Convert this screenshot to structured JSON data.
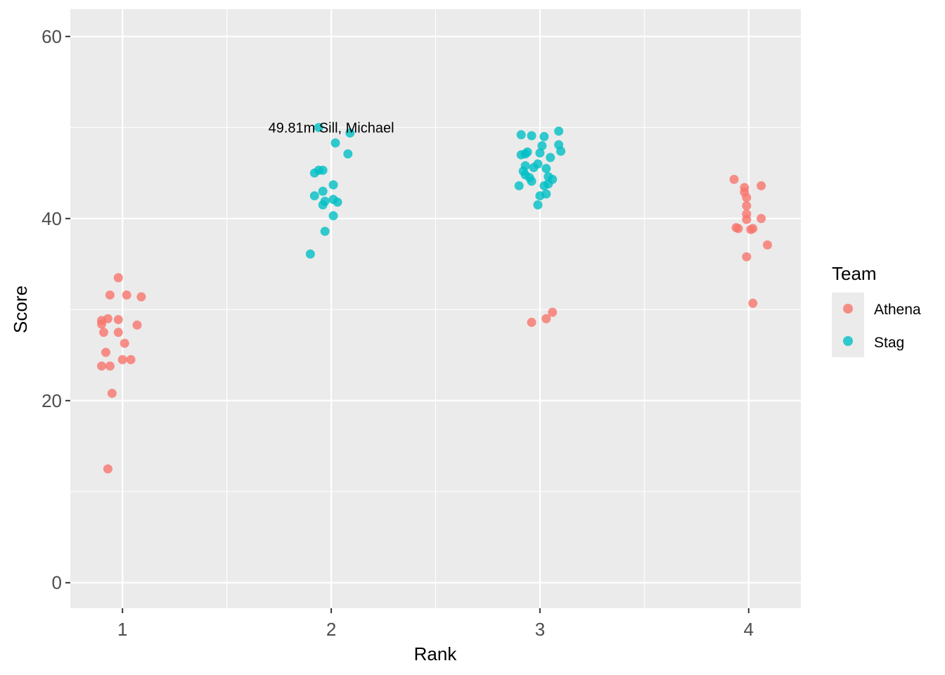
{
  "chart_data": {
    "type": "scatter",
    "xlabel": "Rank",
    "ylabel": "Score",
    "x_ticks": [
      "1",
      "2",
      "3",
      "4"
    ],
    "y_ticks": [
      "0",
      "20",
      "40",
      "60"
    ],
    "xlim": [
      0.75,
      4.25
    ],
    "ylim": [
      -2.8,
      63
    ],
    "grid": true,
    "background": "#ebebeb",
    "legend": {
      "title": "Team",
      "position": "right",
      "entries": [
        {
          "label": "Athena",
          "color": "#f8766d"
        },
        {
          "label": "Stag",
          "color": "#00bfc4"
        }
      ]
    },
    "annotations": [
      {
        "text": "49.81m  Sill, Michael",
        "x": 2.0,
        "y": 50.0
      }
    ],
    "series": [
      {
        "name": "Athena",
        "color": "#f8766d",
        "points": [
          [
            0.98,
            33.5
          ],
          [
            0.94,
            31.6
          ],
          [
            1.02,
            31.6
          ],
          [
            1.09,
            31.4
          ],
          [
            0.93,
            29.0
          ],
          [
            0.98,
            28.9
          ],
          [
            0.9,
            28.8
          ],
          [
            0.9,
            28.4
          ],
          [
            1.07,
            28.3
          ],
          [
            0.91,
            27.5
          ],
          [
            0.98,
            27.5
          ],
          [
            1.01,
            26.3
          ],
          [
            0.92,
            25.3
          ],
          [
            1.0,
            24.5
          ],
          [
            1.04,
            24.5
          ],
          [
            0.9,
            23.8
          ],
          [
            0.94,
            23.8
          ],
          [
            0.95,
            20.8
          ],
          [
            0.93,
            12.5
          ],
          [
            2.96,
            28.6
          ],
          [
            3.03,
            29.0
          ],
          [
            3.06,
            29.7
          ],
          [
            3.93,
            44.3
          ],
          [
            3.98,
            43.4
          ],
          [
            4.06,
            43.6
          ],
          [
            3.98,
            42.9
          ],
          [
            3.99,
            42.3
          ],
          [
            3.99,
            41.4
          ],
          [
            3.99,
            40.5
          ],
          [
            3.99,
            39.9
          ],
          [
            4.06,
            40.0
          ],
          [
            3.94,
            39.0
          ],
          [
            3.95,
            38.9
          ],
          [
            4.01,
            38.8
          ],
          [
            4.02,
            38.9
          ],
          [
            4.09,
            37.1
          ],
          [
            3.99,
            35.8
          ],
          [
            4.02,
            30.7
          ]
        ]
      },
      {
        "name": "Stag",
        "color": "#00bfc4",
        "points": [
          [
            1.94,
            50.0
          ],
          [
            2.09,
            49.4
          ],
          [
            2.02,
            48.3
          ],
          [
            2.08,
            47.1
          ],
          [
            1.96,
            45.3
          ],
          [
            1.94,
            45.3
          ],
          [
            1.92,
            45.0
          ],
          [
            2.01,
            43.7
          ],
          [
            1.96,
            43.0
          ],
          [
            1.92,
            42.5
          ],
          [
            2.01,
            42.1
          ],
          [
            1.97,
            41.9
          ],
          [
            2.03,
            41.8
          ],
          [
            1.96,
            41.5
          ],
          [
            2.01,
            40.3
          ],
          [
            1.97,
            38.6
          ],
          [
            1.9,
            36.1
          ],
          [
            2.91,
            49.2
          ],
          [
            2.96,
            49.1
          ],
          [
            3.02,
            49.0
          ],
          [
            3.09,
            49.6
          ],
          [
            3.01,
            48.0
          ],
          [
            3.09,
            48.1
          ],
          [
            3.0,
            47.2
          ],
          [
            2.94,
            47.3
          ],
          [
            3.1,
            47.4
          ],
          [
            2.91,
            47.0
          ],
          [
            2.93,
            47.1
          ],
          [
            3.05,
            46.7
          ],
          [
            2.99,
            46.0
          ],
          [
            2.93,
            45.8
          ],
          [
            2.97,
            45.6
          ],
          [
            3.03,
            45.5
          ],
          [
            2.92,
            45.2
          ],
          [
            2.93,
            44.8
          ],
          [
            2.95,
            44.5
          ],
          [
            3.04,
            44.6
          ],
          [
            3.06,
            44.3
          ],
          [
            2.96,
            44.1
          ],
          [
            2.9,
            43.6
          ],
          [
            3.02,
            43.6
          ],
          [
            3.04,
            43.8
          ],
          [
            3.0,
            42.5
          ],
          [
            3.03,
            42.7
          ],
          [
            2.99,
            41.5
          ]
        ]
      }
    ]
  }
}
